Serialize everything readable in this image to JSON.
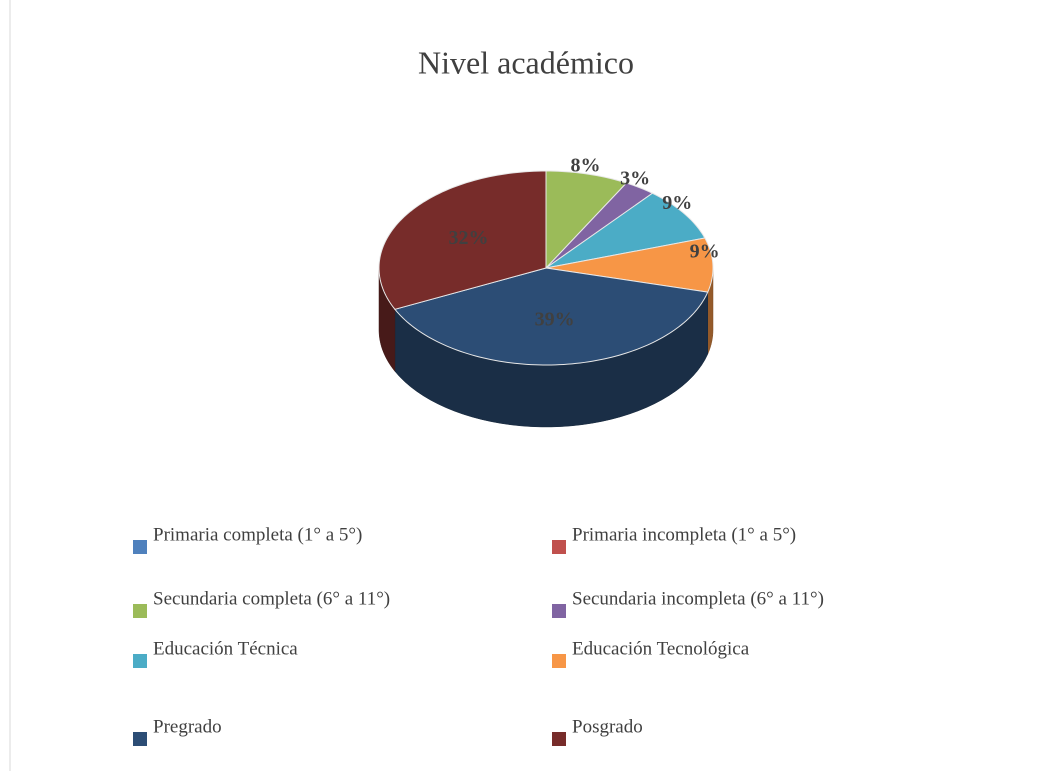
{
  "chart_data": {
    "type": "pie",
    "title": "Nivel académico",
    "categories": [
      "Primaria completa (1° a 5°)",
      "Primaria incompleta (1° a 5°)",
      "Secundaria completa (6° a 11°)",
      "Secundaria incompleta (6° a 11°)",
      "Educación Técnica",
      "Educación Tecnológica",
      "Pregrado",
      "Posgrado"
    ],
    "values": [
      0,
      0,
      8,
      3,
      9,
      9,
      39,
      32
    ],
    "value_labels": [
      null,
      null,
      "8%",
      "3%",
      "9%",
      "9%",
      "39%",
      "32%"
    ],
    "colors": [
      "#4f81bd",
      "#c0504d",
      "#9bbb59",
      "#8064a2",
      "#4bacc6",
      "#f79646",
      "#2c4d75",
      "#772c2a"
    ],
    "legend": "bottom"
  }
}
